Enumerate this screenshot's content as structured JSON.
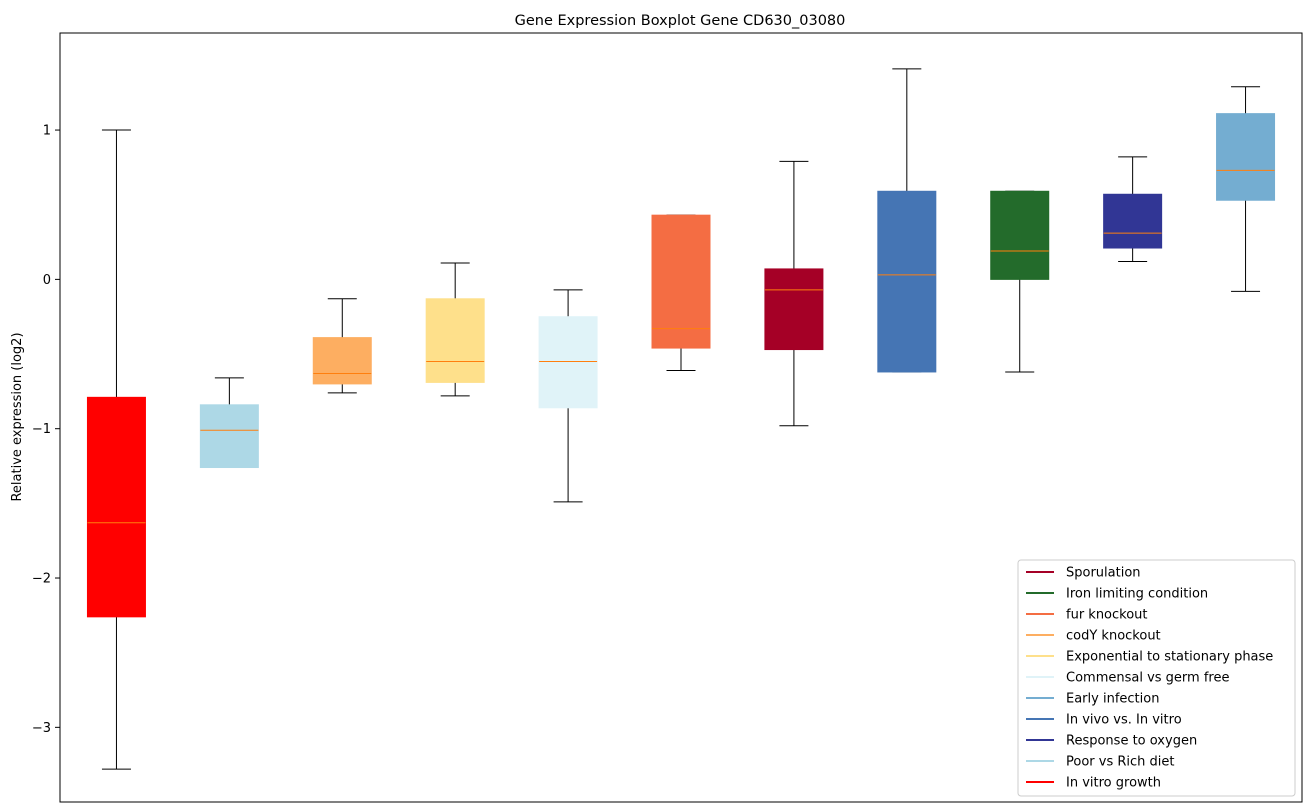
{
  "chart_data": {
    "type": "boxplot",
    "title": "Gene Expression Boxplot Gene CD630_03080",
    "xlabel": "",
    "ylabel": "Relative expression (log2)",
    "ylim": [
      -3.5,
      1.65
    ],
    "yticks": [
      1,
      0,
      -1,
      -2,
      -3
    ],
    "ytick_labels": [
      "1",
      "0",
      "−1",
      "−2",
      "−3"
    ],
    "grid": false,
    "median_color": "#ff7f0e",
    "legend_position": "lower-right",
    "boxes": [
      {
        "name": "In vitro growth",
        "color": "#ff0000",
        "whisker_low": -3.28,
        "q1": -2.26,
        "median": -1.63,
        "q3": -0.79,
        "whisker_high": 1.0
      },
      {
        "name": "Poor vs Rich diet",
        "color": "#add8e6",
        "whisker_low": -1.26,
        "q1": -1.26,
        "median": -1.01,
        "q3": -0.84,
        "whisker_high": -0.66
      },
      {
        "name": "codY knockout",
        "color": "#fdae61",
        "whisker_low": -0.76,
        "q1": -0.7,
        "median": -0.63,
        "q3": -0.39,
        "whisker_high": -0.13
      },
      {
        "name": "Exponential to stationary phase",
        "color": "#fee08b",
        "whisker_low": -0.78,
        "q1": -0.69,
        "median": -0.55,
        "q3": -0.13,
        "whisker_high": 0.11
      },
      {
        "name": "Commensal vs germ free",
        "color": "#e0f3f8",
        "whisker_low": -1.49,
        "q1": -0.86,
        "median": -0.55,
        "q3": -0.25,
        "whisker_high": -0.07
      },
      {
        "name": "fur knockout",
        "color": "#f46d43",
        "whisker_low": -0.61,
        "q1": -0.46,
        "median": -0.33,
        "q3": 0.43,
        "whisker_high": 0.43
      },
      {
        "name": "Sporulation",
        "color": "#a50026",
        "whisker_low": -0.98,
        "q1": -0.47,
        "median": -0.07,
        "q3": 0.07,
        "whisker_high": 0.79
      },
      {
        "name": "In vivo vs. In vitro",
        "color": "#4575b4",
        "whisker_low": -0.62,
        "q1": -0.62,
        "median": 0.03,
        "q3": 0.59,
        "whisker_high": 1.41
      },
      {
        "name": "Iron limiting condition",
        "color": "#236b2b",
        "whisker_low": -0.62,
        "q1": 0.0,
        "median": 0.19,
        "q3": 0.59,
        "whisker_high": 0.59
      },
      {
        "name": "Response to oxygen",
        "color": "#313695",
        "whisker_low": 0.12,
        "q1": 0.21,
        "median": 0.31,
        "q3": 0.57,
        "whisker_high": 0.82
      },
      {
        "name": "Early infection",
        "color": "#74add1",
        "whisker_low": -0.08,
        "q1": 0.53,
        "median": 0.73,
        "q3": 1.11,
        "whisker_high": 1.29
      }
    ],
    "legend": [
      {
        "label": "Sporulation",
        "color": "#a50026"
      },
      {
        "label": "Iron limiting condition",
        "color": "#236b2b"
      },
      {
        "label": "fur knockout",
        "color": "#f46d43"
      },
      {
        "label": "codY knockout",
        "color": "#fdae61"
      },
      {
        "label": "Exponential to stationary phase",
        "color": "#fee08b"
      },
      {
        "label": "Commensal vs germ free",
        "color": "#e0f3f8"
      },
      {
        "label": "Early infection",
        "color": "#74add1"
      },
      {
        "label": "In vivo vs. In vitro",
        "color": "#4575b4"
      },
      {
        "label": "Response to oxygen",
        "color": "#313695"
      },
      {
        "label": "Poor vs Rich diet",
        "color": "#add8e6"
      },
      {
        "label": "In vitro growth",
        "color": "#ff0000"
      }
    ]
  }
}
